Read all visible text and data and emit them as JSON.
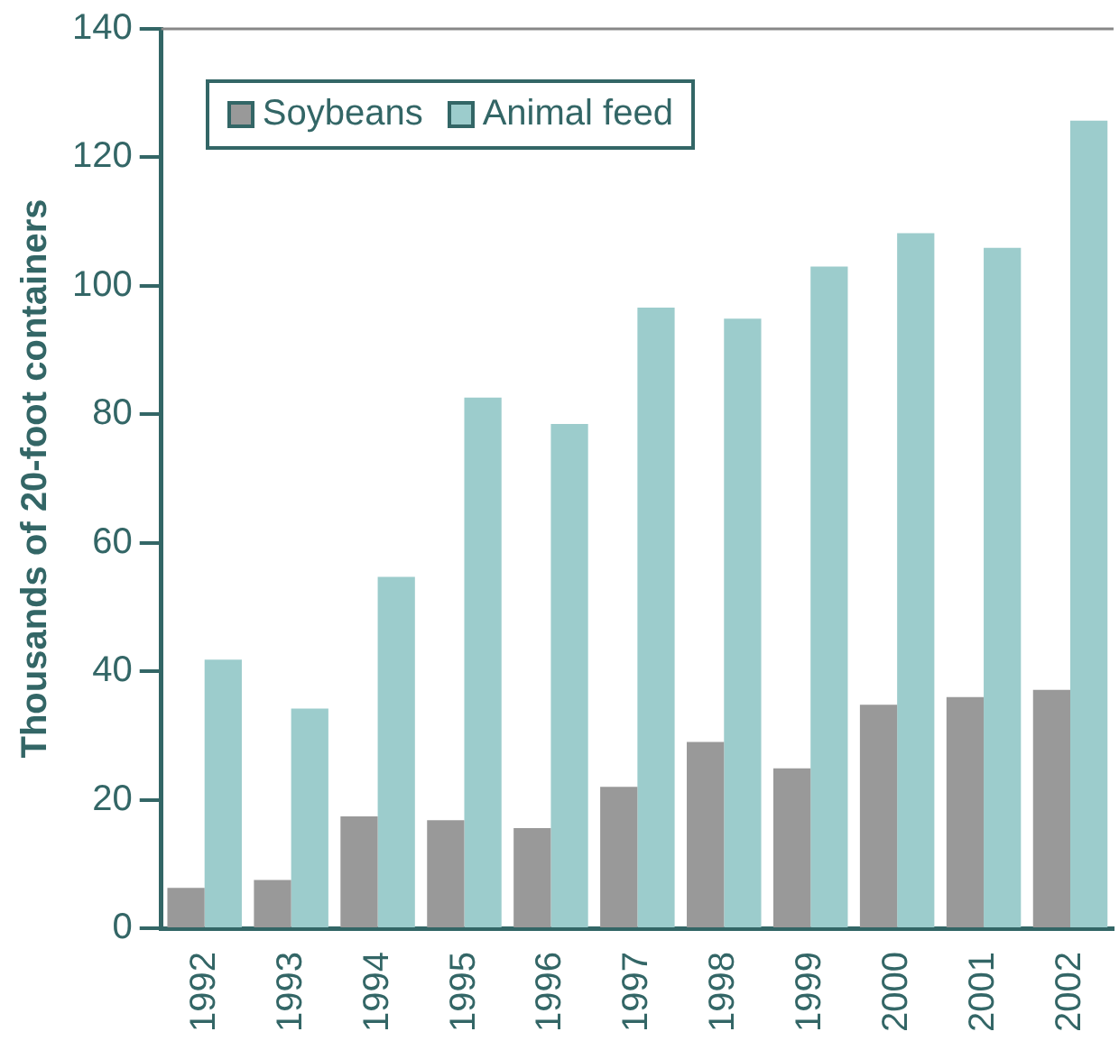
{
  "chart_data": {
    "type": "bar",
    "ylabel": "Thousands of 20-foot containers",
    "categories": [
      "1992",
      "1993",
      "1994",
      "1995",
      "1996",
      "1997",
      "1998",
      "1999",
      "2000",
      "2001",
      "2002"
    ],
    "series": [
      {
        "name": "Soybeans",
        "color": "#999999",
        "values": [
          6.3,
          7.5,
          17.4,
          16.8,
          15.6,
          22.0,
          29.0,
          24.9,
          34.8,
          36.0,
          37.1
        ]
      },
      {
        "name": "Animal feed",
        "color": "#9ccccc",
        "values": [
          41.8,
          34.2,
          54.7,
          82.6,
          78.5,
          96.6,
          94.9,
          103.0,
          108.2,
          105.9,
          125.7
        ]
      }
    ],
    "ylim": [
      0,
      140
    ],
    "yticks": [
      0,
      20,
      40,
      60,
      80,
      100,
      120,
      140
    ],
    "grid": false,
    "legend": "top left"
  }
}
